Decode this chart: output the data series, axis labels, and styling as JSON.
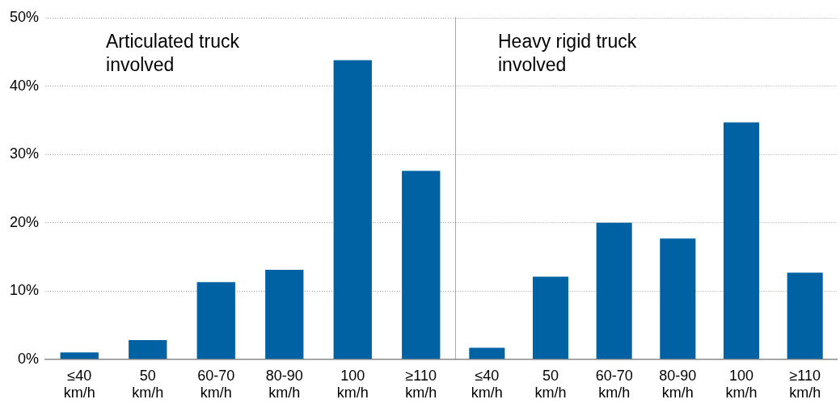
{
  "chart_data": [
    {
      "type": "bar",
      "title": "Articulated truck involved",
      "categories": [
        "≤40 km/h",
        "50 km/h",
        "60-70 km/h",
        "80-90 km/h",
        "100 km/h",
        "≥110 km/h"
      ],
      "values": [
        1.0,
        2.8,
        11.3,
        13.1,
        43.8,
        27.6
      ],
      "color": "#0062a3",
      "ylim": [
        0,
        50
      ],
      "yticks": [
        {
          "value": 0,
          "label": "0%"
        },
        {
          "value": 10,
          "label": "10%"
        },
        {
          "value": 20,
          "label": "20%"
        },
        {
          "value": 30,
          "label": "30%"
        },
        {
          "value": 40,
          "label": "40%"
        },
        {
          "value": 50,
          "label": "50%"
        }
      ],
      "grid": "y"
    },
    {
      "type": "bar",
      "title": "Heavy rigid truck involved",
      "categories": [
        "≤40 km/h",
        "50 km/h",
        "60-70 km/h",
        "80-90 km/h",
        "100 km/h",
        "≥110 km/h"
      ],
      "values": [
        1.7,
        12.1,
        20.0,
        17.7,
        34.7,
        12.7
      ],
      "color": "#0062a3",
      "ylim": [
        0,
        50
      ],
      "yticks": [
        0,
        10,
        20,
        30,
        40,
        50
      ],
      "grid": "y",
      "tick_labels": "x"
    }
  ]
}
